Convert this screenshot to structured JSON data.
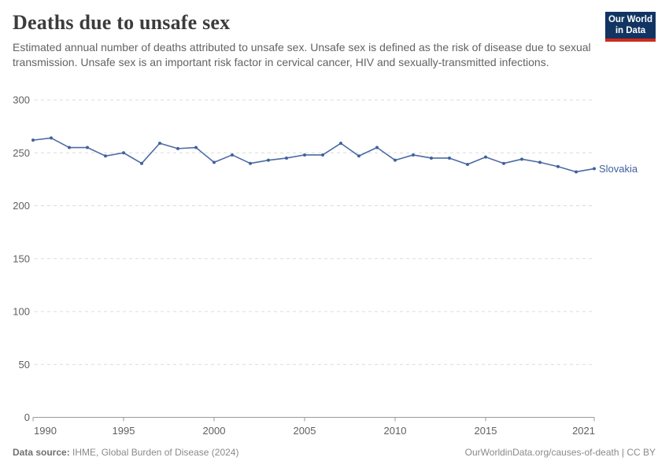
{
  "header": {
    "title": "Deaths due to unsafe sex",
    "subtitle": "Estimated annual number of deaths attributed to unsafe sex. Unsafe sex is defined as the risk of disease due to sexual transmission. Unsafe sex is an important risk factor in cervical cancer, HIV and sexually-transmitted infections."
  },
  "logo": {
    "line1": "Our World",
    "line2": "in Data"
  },
  "footer": {
    "source_label": "Data source:",
    "source_text": " IHME, Global Burden of Disease (2024)",
    "credit": "OurWorldinData.org/causes-of-death | CC BY"
  },
  "colors": {
    "line": "#4c6ba4",
    "point": "#41619e",
    "entity_label": "#41619e",
    "grid": "#dbdbdb",
    "axis": "#9a9a9a",
    "tick_text": "#606060",
    "logo_bg": "#123462",
    "logo_stripe": "#cf2a1b"
  },
  "chart_data": {
    "type": "line",
    "title": "Deaths due to unsafe sex",
    "xlabel": "",
    "ylabel": "",
    "xlim": [
      1990,
      2021
    ],
    "ylim": [
      0,
      300
    ],
    "grid": "horizontal-dashed",
    "legend_position": "end-of-line-label",
    "xticks": [
      1990,
      1995,
      2000,
      2005,
      2010,
      2015,
      2021
    ],
    "yticks": [
      0,
      50,
      100,
      150,
      200,
      250,
      300
    ],
    "x": [
      1990,
      1991,
      1992,
      1993,
      1994,
      1995,
      1996,
      1997,
      1998,
      1999,
      2000,
      2001,
      2002,
      2003,
      2004,
      2005,
      2006,
      2007,
      2008,
      2009,
      2010,
      2011,
      2012,
      2013,
      2014,
      2015,
      2016,
      2017,
      2018,
      2019,
      2020,
      2021
    ],
    "series": [
      {
        "name": "Slovakia",
        "values": [
          262,
          264,
          255,
          255,
          247,
          250,
          240,
          259,
          254,
          255,
          241,
          248,
          240,
          243,
          245,
          248,
          248,
          259,
          247,
          255,
          243,
          248,
          245,
          245,
          239,
          246,
          240,
          244,
          241,
          237,
          232,
          235
        ]
      }
    ]
  }
}
